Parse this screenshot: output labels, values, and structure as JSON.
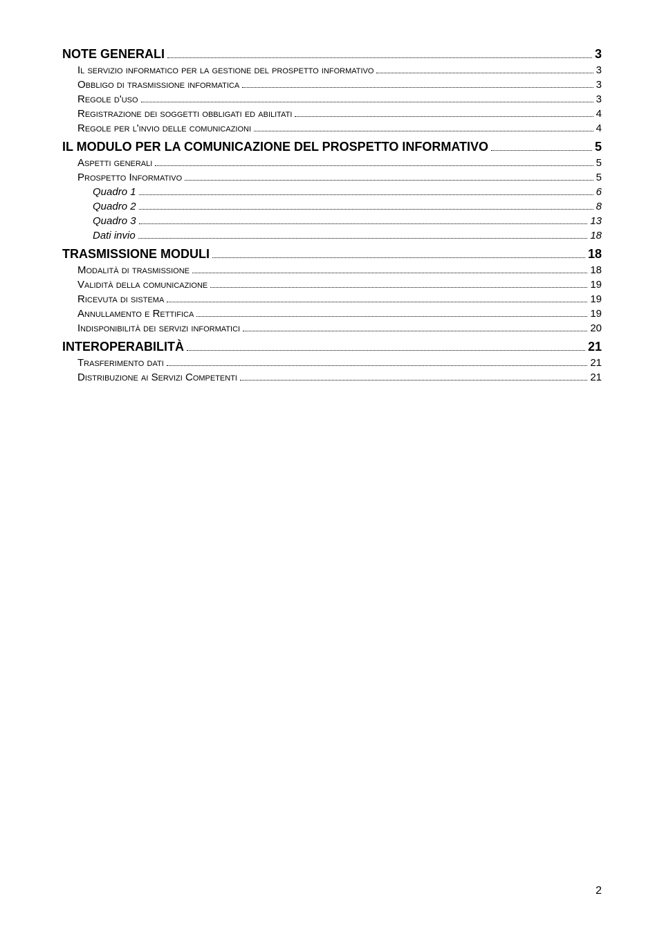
{
  "colors": {
    "text": "#000000",
    "background": "#ffffff",
    "dots": "#000000"
  },
  "typography": {
    "font_family": "Arial",
    "lvl0_fontsize_pt": 14,
    "lvl0_fontweight": "bold",
    "lvl1_fontsize_pt": 11,
    "lvl1_variant": "small-caps",
    "lvl2_fontsize_pt": 11,
    "lvl2_style": "italic"
  },
  "toc": [
    {
      "level": 0,
      "label": "NOTE GENERALI",
      "page": "3"
    },
    {
      "level": 1,
      "label": "Il servizio informatico per la gestione del prospetto informativo",
      "page": "3"
    },
    {
      "level": 1,
      "label": "Obbligo di trasmissione informatica",
      "page": "3"
    },
    {
      "level": 1,
      "label": "Regole d'uso",
      "page": "3"
    },
    {
      "level": 1,
      "label": "Registrazione dei soggetti obbligati ed abilitati",
      "page": "4"
    },
    {
      "level": 1,
      "label": "Regole per l'invio delle comunicazioni",
      "page": "4"
    },
    {
      "level": 0,
      "label": "IL MODULO PER LA COMUNICAZIONE DEL PROSPETTO INFORMATIVO",
      "page": "5"
    },
    {
      "level": 1,
      "label": "Aspetti generali",
      "page": "5"
    },
    {
      "level": 1,
      "label": "Prospetto Informativo",
      "page": "5"
    },
    {
      "level": 2,
      "label": "Quadro 1",
      "page": "6"
    },
    {
      "level": 2,
      "label": "Quadro 2",
      "page": "8"
    },
    {
      "level": 2,
      "label": "Quadro 3",
      "page": "13"
    },
    {
      "level": 2,
      "label": "Dati invio",
      "page": "18"
    },
    {
      "level": 0,
      "label": "TRASMISSIONE MODULI",
      "page": "18"
    },
    {
      "level": 1,
      "label": "Modalità di trasmissione",
      "page": "18"
    },
    {
      "level": 1,
      "label": "Validità della comunicazione",
      "page": "19"
    },
    {
      "level": 1,
      "label": "Ricevuta di sistema",
      "page": "19"
    },
    {
      "level": 1,
      "label": "Annullamento e Rettifica",
      "page": "19"
    },
    {
      "level": 1,
      "label": "Indisponibilità dei servizi informatici",
      "page": "20"
    },
    {
      "level": 0,
      "label": "INTEROPERABILITÀ",
      "page": "21"
    },
    {
      "level": 1,
      "label": "Trasferimento dati",
      "page": "21"
    },
    {
      "level": 1,
      "label": "Distribuzione ai Servizi Competenti",
      "page": "21"
    }
  ],
  "pageNumber": "2"
}
